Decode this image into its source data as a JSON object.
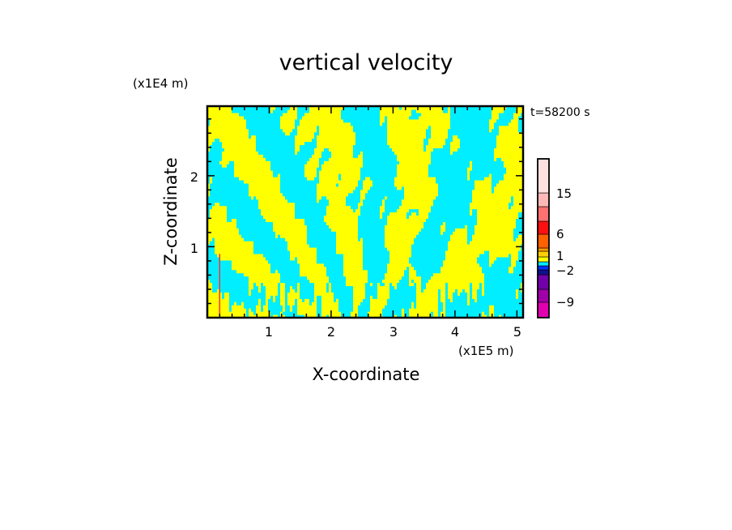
{
  "chart_data": {
    "type": "heatmap",
    "title": "vertical velocity",
    "xlabel": "X-coordinate",
    "ylabel": "Z-coordinate",
    "x_unit": "(x1E5 m)",
    "y_unit": "(x1E4 m)",
    "time_label": "t=58200 s",
    "xlim": [
      0,
      5.1
    ],
    "ylim": [
      0,
      2.98
    ],
    "x_ticks": [
      1,
      2,
      3,
      4,
      5
    ],
    "y_ticks": [
      1,
      2
    ],
    "x_minor_step": 0.2,
    "y_minor_step": 0.2,
    "field_description_colors": {
      "positive": "#ffff00",
      "negative": "#00eeff"
    },
    "colorbar": {
      "segments": [
        {
          "color": "#e000b0"
        },
        {
          "color": "#a000a8"
        },
        {
          "color": "#7000a8"
        },
        {
          "color": "#101090"
        },
        {
          "color": "#0030ff"
        },
        {
          "color": "#00e8ff"
        },
        {
          "color": "#ffff00"
        },
        {
          "color": "#ffd000"
        },
        {
          "color": "#ff9900"
        },
        {
          "color": "#ff6000"
        },
        {
          "color": "#ff1010"
        },
        {
          "color": "#ff7070"
        },
        {
          "color": "#ffb8b8"
        },
        {
          "color": "#ffe0e0"
        }
      ],
      "labels": [
        "15",
        "6",
        "1",
        "−2",
        "−9"
      ]
    }
  }
}
